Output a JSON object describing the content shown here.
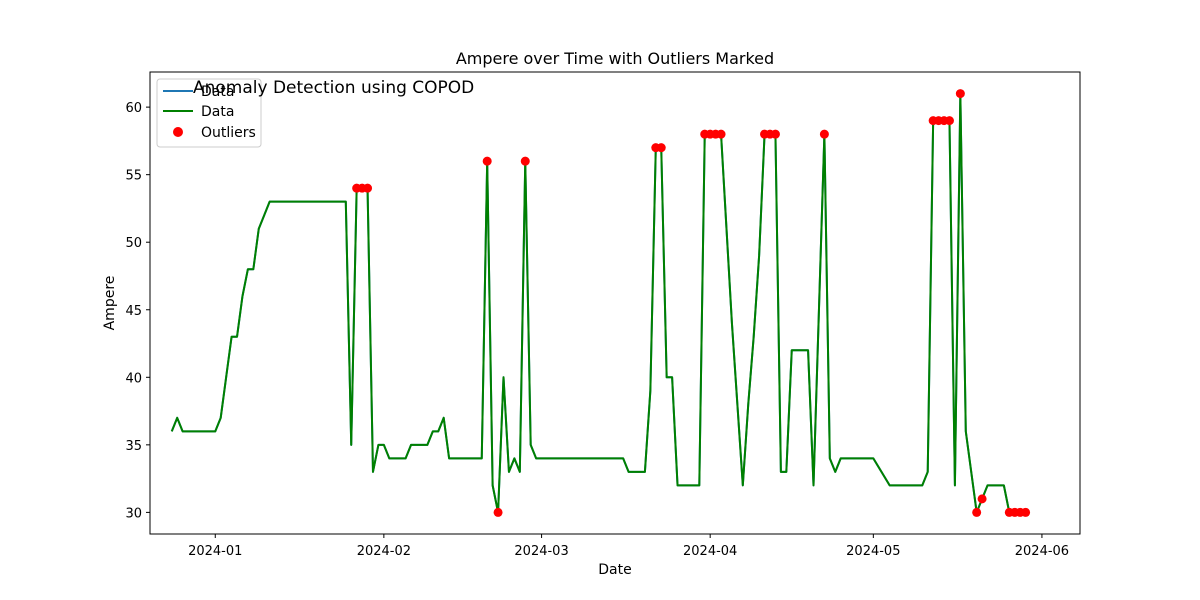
{
  "chart_data": {
    "type": "line",
    "title": "Ampere over Time with Outliers Marked",
    "annotation": "Anomaly Detection using COPOD",
    "xlabel": "Date",
    "ylabel": "Ampere",
    "xlim": [
      "2023-12-20",
      "2024-06-08"
    ],
    "ylim": [
      28.4,
      62.6
    ],
    "x_ticks": [
      "2024-01",
      "2024-02",
      "2024-03",
      "2024-04",
      "2024-05",
      "2024-06"
    ],
    "y_ticks": [
      30,
      35,
      40,
      45,
      50,
      55,
      60
    ],
    "grid": false,
    "legend": {
      "position": "top-left",
      "entries": [
        "Data",
        "Data",
        "Outliers"
      ]
    },
    "colors": {
      "data1": "#1f77b4",
      "data2": "#008000",
      "outliers": "#ff0000",
      "annotation": "#ff0000"
    },
    "series": [
      {
        "name": "Data",
        "style": "line",
        "points": [
          [
            "2023-12-24",
            36
          ],
          [
            "2023-12-25",
            37
          ],
          [
            "2023-12-26",
            36
          ],
          [
            "2023-12-27",
            36
          ],
          [
            "2023-12-28",
            36
          ],
          [
            "2023-12-29",
            36
          ],
          [
            "2023-12-30",
            36
          ],
          [
            "2023-12-31",
            36
          ],
          [
            "2024-01-01",
            36
          ],
          [
            "2024-01-02",
            37
          ],
          [
            "2024-01-03",
            40
          ],
          [
            "2024-01-04",
            43
          ],
          [
            "2024-01-05",
            43
          ],
          [
            "2024-01-06",
            46
          ],
          [
            "2024-01-07",
            48
          ],
          [
            "2024-01-08",
            48
          ],
          [
            "2024-01-09",
            51
          ],
          [
            "2024-01-10",
            52
          ],
          [
            "2024-01-11",
            53
          ],
          [
            "2024-01-13",
            53
          ],
          [
            "2024-01-18",
            53
          ],
          [
            "2024-01-22",
            53
          ],
          [
            "2024-01-24",
            53
          ],
          [
            "2024-01-25",
            53
          ],
          [
            "2024-01-26",
            35
          ],
          [
            "2024-01-27",
            54
          ],
          [
            "2024-01-28",
            54
          ],
          [
            "2024-01-29",
            54
          ],
          [
            "2024-01-30",
            33
          ],
          [
            "2024-01-31",
            35
          ],
          [
            "2024-02-01",
            35
          ],
          [
            "2024-02-02",
            34
          ],
          [
            "2024-02-04",
            34
          ],
          [
            "2024-02-05",
            34
          ],
          [
            "2024-02-06",
            35
          ],
          [
            "2024-02-07",
            35
          ],
          [
            "2024-02-09",
            35
          ],
          [
            "2024-02-10",
            36
          ],
          [
            "2024-02-11",
            36
          ],
          [
            "2024-02-12",
            37
          ],
          [
            "2024-02-13",
            34
          ],
          [
            "2024-02-16",
            34
          ],
          [
            "2024-02-19",
            34
          ],
          [
            "2024-02-20",
            56
          ],
          [
            "2024-02-21",
            32
          ],
          [
            "2024-02-22",
            30
          ],
          [
            "2024-02-23",
            40
          ],
          [
            "2024-02-24",
            33
          ],
          [
            "2024-02-25",
            34
          ],
          [
            "2024-02-26",
            33
          ],
          [
            "2024-02-27",
            56
          ],
          [
            "2024-02-28",
            35
          ],
          [
            "2024-02-29",
            34
          ],
          [
            "2024-03-03",
            34
          ],
          [
            "2024-03-08",
            34
          ],
          [
            "2024-03-13",
            34
          ],
          [
            "2024-03-16",
            34
          ],
          [
            "2024-03-17",
            33
          ],
          [
            "2024-03-19",
            33
          ],
          [
            "2024-03-20",
            33
          ],
          [
            "2024-03-21",
            39
          ],
          [
            "2024-03-22",
            57
          ],
          [
            "2024-03-23",
            57
          ],
          [
            "2024-03-24",
            40
          ],
          [
            "2024-03-25",
            40
          ],
          [
            "2024-03-26",
            32
          ],
          [
            "2024-03-28",
            32
          ],
          [
            "2024-03-30",
            32
          ],
          [
            "2024-03-31",
            58
          ],
          [
            "2024-04-01",
            58
          ],
          [
            "2024-04-02",
            58
          ],
          [
            "2024-04-03",
            58
          ],
          [
            "2024-04-04",
            51
          ],
          [
            "2024-04-05",
            44
          ],
          [
            "2024-04-07",
            32
          ],
          [
            "2024-04-08",
            38
          ],
          [
            "2024-04-09",
            43
          ],
          [
            "2024-04-10",
            49
          ],
          [
            "2024-04-11",
            58
          ],
          [
            "2024-04-12",
            58
          ],
          [
            "2024-04-13",
            58
          ],
          [
            "2024-04-14",
            33
          ],
          [
            "2024-04-15",
            33
          ],
          [
            "2024-04-16",
            42
          ],
          [
            "2024-04-17",
            42
          ],
          [
            "2024-04-18",
            42
          ],
          [
            "2024-04-19",
            42
          ],
          [
            "2024-04-20",
            32
          ],
          [
            "2024-04-21",
            45
          ],
          [
            "2024-04-22",
            58
          ],
          [
            "2024-04-23",
            34
          ],
          [
            "2024-04-24",
            33
          ],
          [
            "2024-04-25",
            34
          ],
          [
            "2024-04-28",
            34
          ],
          [
            "2024-05-01",
            34
          ],
          [
            "2024-05-04",
            32
          ],
          [
            "2024-05-10",
            32
          ],
          [
            "2024-05-11",
            33
          ],
          [
            "2024-05-12",
            59
          ],
          [
            "2024-05-13",
            59
          ],
          [
            "2024-05-14",
            59
          ],
          [
            "2024-05-15",
            59
          ],
          [
            "2024-05-16",
            32
          ],
          [
            "2024-05-17",
            61
          ],
          [
            "2024-05-18",
            36
          ],
          [
            "2024-05-19",
            33
          ],
          [
            "2024-05-20",
            30
          ],
          [
            "2024-05-21",
            31
          ],
          [
            "2024-05-22",
            32
          ],
          [
            "2024-05-23",
            32
          ],
          [
            "2024-05-25",
            32
          ],
          [
            "2024-05-26",
            30
          ],
          [
            "2024-05-27",
            30
          ],
          [
            "2024-05-28",
            30
          ],
          [
            "2024-05-29",
            30
          ]
        ]
      },
      {
        "name": "Data",
        "style": "line",
        "points": "same as first series"
      },
      {
        "name": "Outliers",
        "style": "scatter",
        "points": [
          [
            "2024-01-27",
            54
          ],
          [
            "2024-01-28",
            54
          ],
          [
            "2024-01-29",
            54
          ],
          [
            "2024-02-20",
            56
          ],
          [
            "2024-02-22",
            30
          ],
          [
            "2024-02-27",
            56
          ],
          [
            "2024-03-22",
            57
          ],
          [
            "2024-03-23",
            57
          ],
          [
            "2024-03-31",
            58
          ],
          [
            "2024-04-01",
            58
          ],
          [
            "2024-04-02",
            58
          ],
          [
            "2024-04-03",
            58
          ],
          [
            "2024-04-11",
            58
          ],
          [
            "2024-04-12",
            58
          ],
          [
            "2024-04-13",
            58
          ],
          [
            "2024-04-22",
            58
          ],
          [
            "2024-05-12",
            59
          ],
          [
            "2024-05-13",
            59
          ],
          [
            "2024-05-14",
            59
          ],
          [
            "2024-05-15",
            59
          ],
          [
            "2024-05-17",
            61
          ],
          [
            "2024-05-20",
            30
          ],
          [
            "2024-05-21",
            31
          ],
          [
            "2024-05-26",
            30
          ],
          [
            "2024-05-27",
            30
          ],
          [
            "2024-05-28",
            30
          ],
          [
            "2024-05-29",
            30
          ]
        ]
      }
    ]
  }
}
